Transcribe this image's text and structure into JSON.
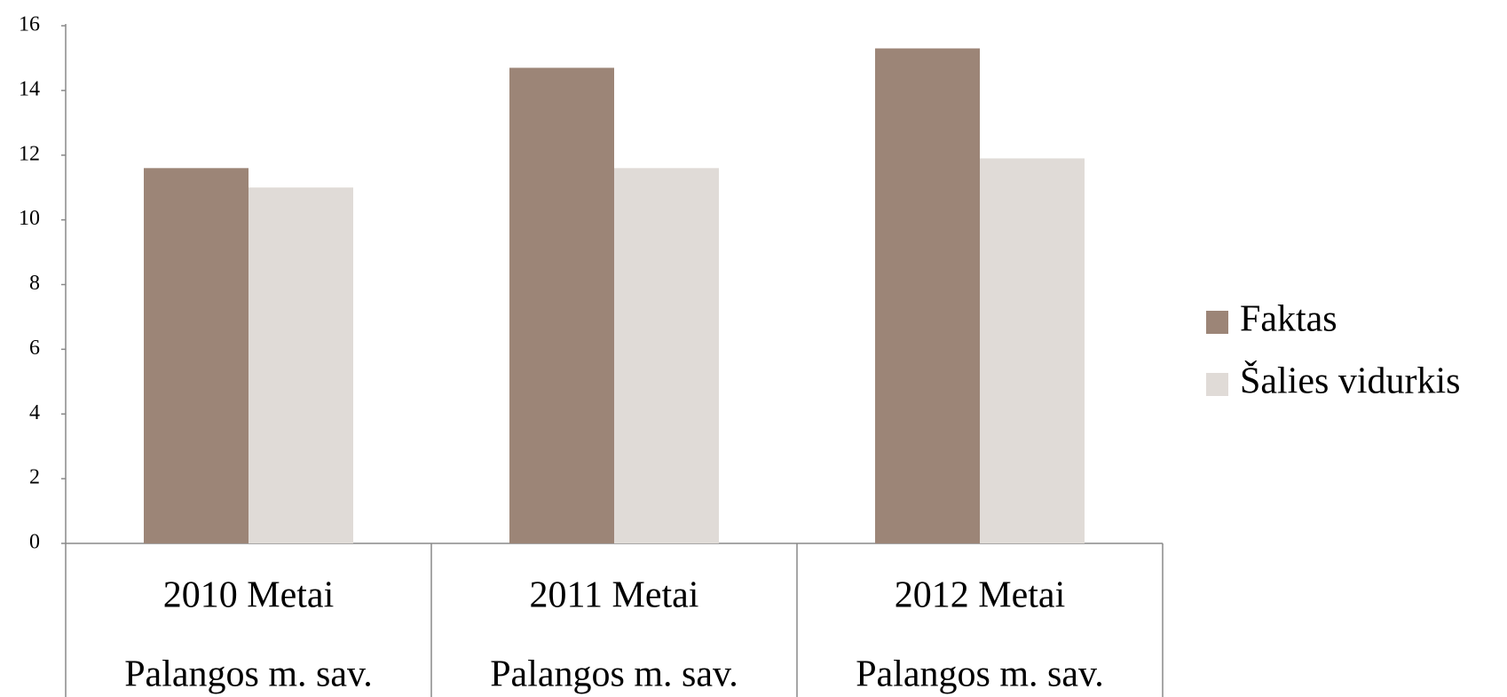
{
  "chart_data": {
    "type": "bar",
    "categories": [
      [
        "2010 Metai",
        "Palangos m. sav."
      ],
      [
        "2011 Metai",
        "Palangos m. sav."
      ],
      [
        "2012 Metai",
        "Palangos m. sav."
      ]
    ],
    "series": [
      {
        "name": "Faktas",
        "color": "#9c8577",
        "values": [
          11.6,
          14.7,
          15.3
        ]
      },
      {
        "name": "Šalies vidurkis",
        "color": "#e0dbd7",
        "values": [
          11.0,
          11.6,
          11.9
        ]
      }
    ],
    "ylim": [
      0,
      16
    ],
    "yticks": [
      0,
      2,
      4,
      6,
      8,
      10,
      12,
      14,
      16
    ],
    "grid": false,
    "legend": "right"
  }
}
